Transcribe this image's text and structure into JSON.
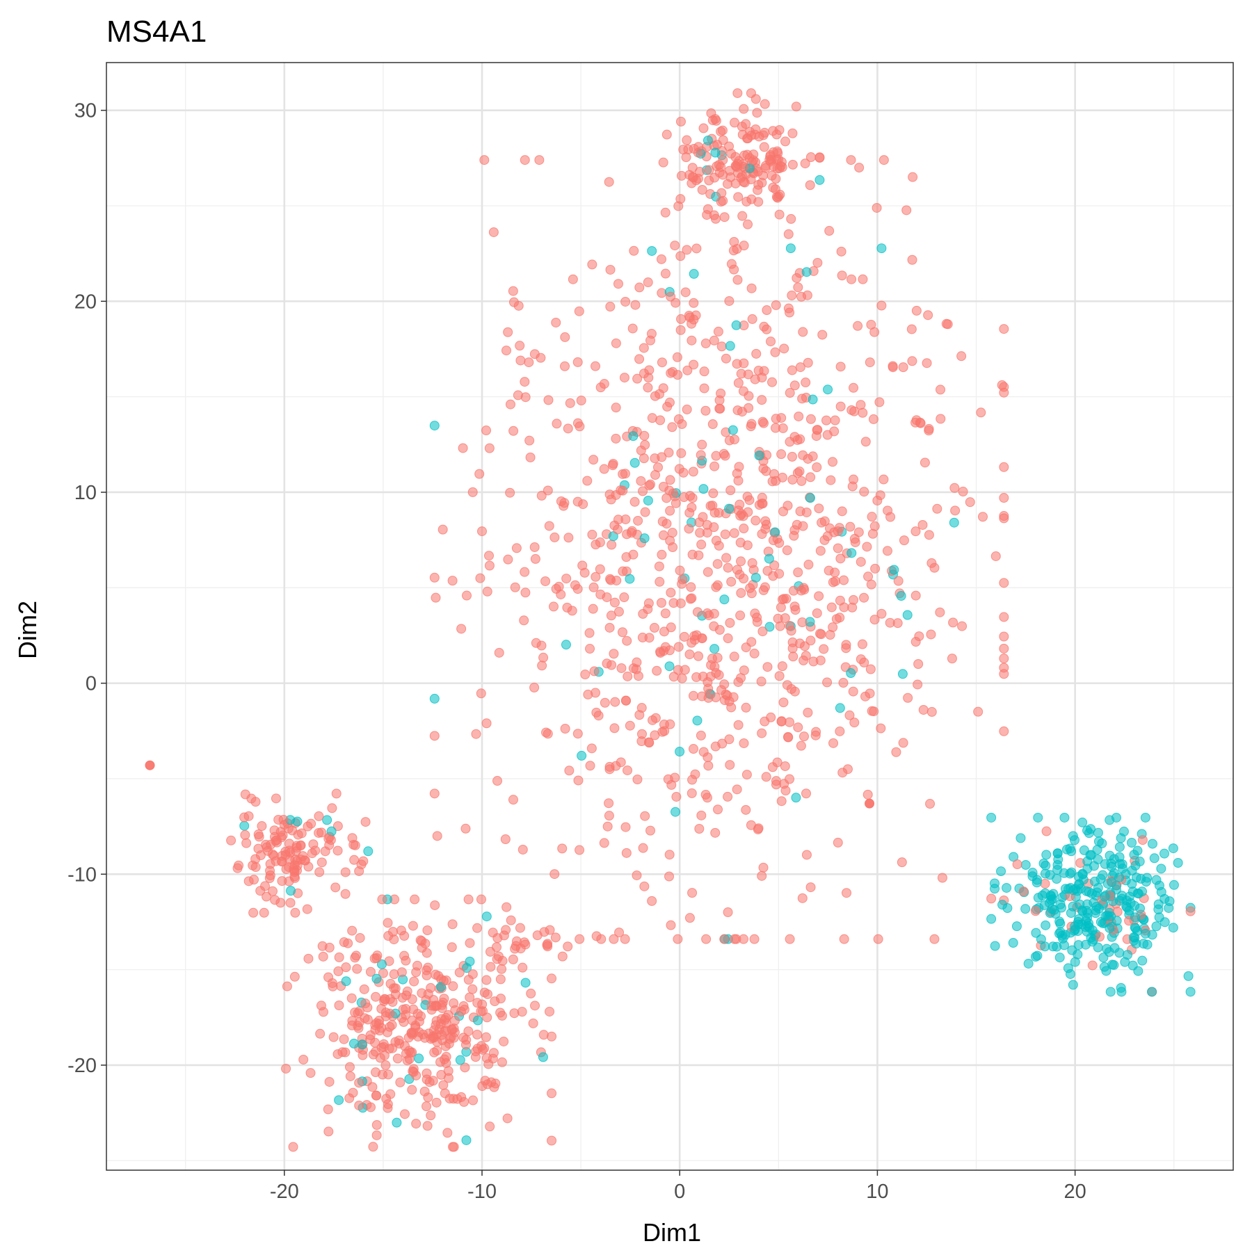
{
  "chart_data": {
    "type": "scatter",
    "title": "MS4A1",
    "xlabel": "Dim1",
    "ylabel": "Dim2",
    "xlim": [
      -29,
      28
    ],
    "ylim": [
      -25.5,
      32.5
    ],
    "x_ticks": [
      -20,
      -10,
      0,
      10,
      20
    ],
    "y_ticks": [
      -20,
      -10,
      0,
      10,
      20,
      30
    ],
    "grid": true,
    "legend": "none",
    "point_alpha": 0.55,
    "colors": {
      "low": "#F8766D",
      "high": "#00BFC4"
    },
    "outliers": [
      {
        "x": -26.8,
        "y": -4.3,
        "group": "low"
      },
      {
        "x": 9.6,
        "y": -6.3,
        "group": "low"
      }
    ],
    "clusters": [
      {
        "group": "low",
        "n": 160,
        "cx": 3.0,
        "cy": 27.3,
        "sx": 1.7,
        "sy": 1.5,
        "high_frac": 0.05
      },
      {
        "group": "low",
        "n": 980,
        "cx": 2.0,
        "cy": 7.0,
        "sx": 6.0,
        "sy": 8.5,
        "high_frac": 0.05
      },
      {
        "group": "low",
        "n": 130,
        "cx": -19.6,
        "cy": -8.9,
        "sx": 1.6,
        "sy": 1.3,
        "high_frac": 0.05
      },
      {
        "group": "low",
        "n": 380,
        "cx": -13.2,
        "cy": -17.8,
        "sx": 2.8,
        "sy": 2.7,
        "high_frac": 0.05
      },
      {
        "group": "low",
        "n": 25,
        "cx": -8.0,
        "cy": -13.6,
        "sx": 1.2,
        "sy": 0.6,
        "high_frac": 0.0
      },
      {
        "group": "high",
        "n": 330,
        "cx": 20.8,
        "cy": -11.6,
        "sx": 2.1,
        "sy": 1.9,
        "high_frac": 0.88
      }
    ]
  }
}
